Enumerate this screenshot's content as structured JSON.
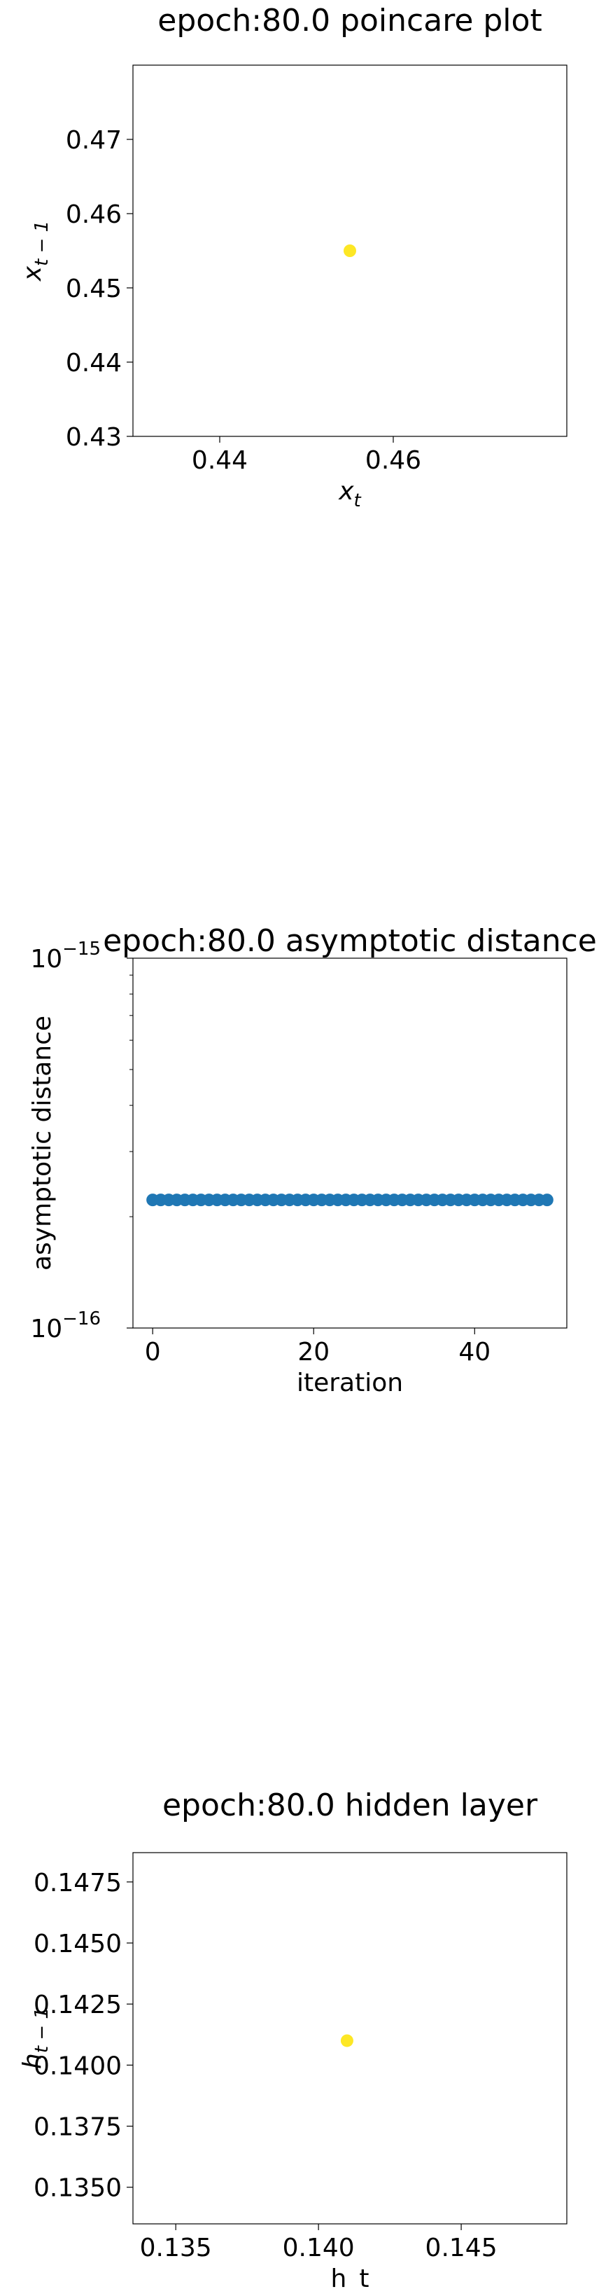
{
  "chart_data": [
    {
      "type": "scatter",
      "title": "epoch:80.0 poincare plot",
      "xlabel": "x",
      "xlabel_sub": "t",
      "ylabel": "x",
      "ylabel_sub": "t − 1",
      "xlim": [
        0.43,
        0.48
      ],
      "ylim": [
        0.43,
        0.48
      ],
      "xticks": [
        0.44,
        0.46
      ],
      "xtick_labels": [
        "0.44",
        "0.46"
      ],
      "yticks": [
        0.43,
        0.44,
        0.45,
        0.46,
        0.47
      ],
      "ytick_labels": [
        "0.43",
        "0.44",
        "0.45",
        "0.46",
        "0.47"
      ],
      "grid": false,
      "points": [
        {
          "x": 0.455,
          "y": 0.455
        }
      ],
      "colors": {
        "point": "#fde725"
      }
    },
    {
      "type": "scatter",
      "title": "epoch:80.0 asymptotic distance",
      "xlabel": "iteration",
      "ylabel": "asymptotic distance",
      "yscale": "log",
      "xlim": [
        -2.45,
        51.45
      ],
      "ylim": [
        1e-16,
        1e-15
      ],
      "xticks": [
        0,
        20,
        40
      ],
      "xtick_labels": [
        "0",
        "20",
        "40"
      ],
      "yticks": [
        1e-16,
        1e-15
      ],
      "ytick_labels": [
        {
          "base": "10",
          "exp": "−16"
        },
        {
          "base": "10",
          "exp": "−15"
        }
      ],
      "grid": false,
      "x": [
        0,
        1,
        2,
        3,
        4,
        5,
        6,
        7,
        8,
        9,
        10,
        11,
        12,
        13,
        14,
        15,
        16,
        17,
        18,
        19,
        20,
        21,
        22,
        23,
        24,
        25,
        26,
        27,
        28,
        29,
        30,
        31,
        32,
        33,
        34,
        35,
        36,
        37,
        38,
        39,
        40,
        41,
        42,
        43,
        44,
        45,
        46,
        47,
        48,
        49
      ],
      "y_constant": 2.22e-16,
      "colors": {
        "point": "#1f77b4"
      }
    },
    {
      "type": "scatter",
      "title": "epoch:80.0 hidden layer",
      "xlabel": "h_t",
      "ylabel": "h",
      "ylabel_sub": "t − 1",
      "xlim": [
        0.1335,
        0.1487
      ],
      "ylim": [
        0.1335,
        0.1487
      ],
      "xticks": [
        0.135,
        0.14,
        0.145
      ],
      "xtick_labels": [
        "0.135",
        "0.140",
        "0.145"
      ],
      "yticks": [
        0.135,
        0.1375,
        0.14,
        0.1425,
        0.145,
        0.1475
      ],
      "ytick_labels": [
        "0.1350",
        "0.1375",
        "0.1400",
        "0.1425",
        "0.1450",
        "0.1475"
      ],
      "grid": false,
      "points": [
        {
          "x": 0.141,
          "y": 0.141
        }
      ],
      "colors": {
        "point": "#fde725"
      }
    }
  ]
}
